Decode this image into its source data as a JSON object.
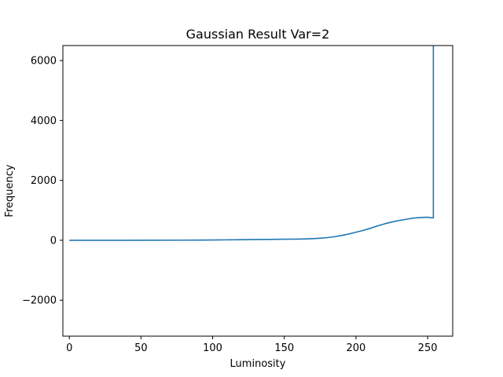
{
  "chart_data": {
    "type": "line",
    "title": "Gaussian Result Var=2",
    "xlabel": "Luminosity",
    "ylabel": "Frequency",
    "xlim": [
      -4.5,
      267.5
    ],
    "ylim": [
      -3200,
      6500
    ],
    "xticks": [
      0,
      50,
      100,
      150,
      200,
      250
    ],
    "yticks": [
      -2000,
      0,
      2000,
      4000,
      6000
    ],
    "ytick_labels": [
      "−2000",
      "0",
      "2000",
      "4000",
      "6000"
    ],
    "grid": false,
    "color": "#1f77b4",
    "series": [
      {
        "x": [
          0,
          20,
          40,
          60,
          80,
          100,
          110,
          120,
          130,
          140,
          150,
          155,
          160,
          165,
          170,
          175,
          180,
          185,
          190,
          195,
          200,
          205,
          210,
          215,
          220,
          225,
          230,
          235,
          240,
          245,
          250,
          253,
          254,
          254
        ],
        "y": [
          0,
          0,
          0,
          2,
          5,
          10,
          15,
          20,
          25,
          30,
          35,
          38,
          40,
          45,
          55,
          70,
          90,
          120,
          160,
          210,
          270,
          330,
          400,
          480,
          550,
          610,
          660,
          700,
          740,
          760,
          770,
          750,
          750,
          6500
        ]
      }
    ]
  }
}
